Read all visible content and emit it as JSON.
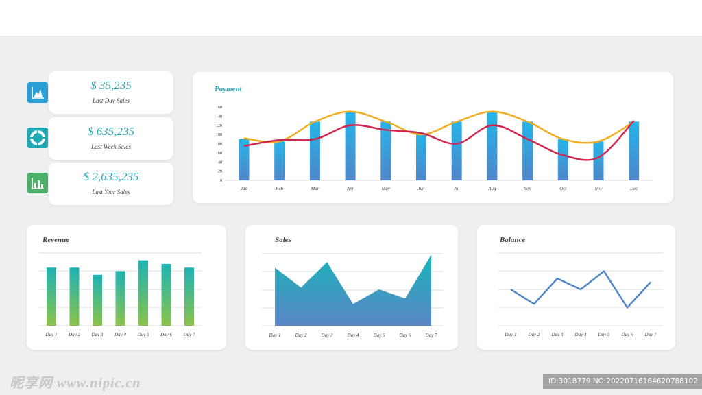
{
  "stats": [
    {
      "value": "$ 35,235",
      "label": "Last Day Sales",
      "icon": "area-chart-icon",
      "color": "#2a9fd6"
    },
    {
      "value": "$ 635,235",
      "label": "Last Week Sales",
      "icon": "pie-chart-icon",
      "color": "#1fa9b3"
    },
    {
      "value": "$ 2,635,235",
      "label": "Last Year Sales",
      "icon": "bar-chart-icon",
      "color": "#4caf6a"
    }
  ],
  "chart_data": [
    {
      "type": "bar",
      "title": "Payment",
      "categories": [
        "Jan",
        "Feb",
        "Mar",
        "Apr",
        "May",
        "Jun",
        "Jul",
        "Aug",
        "Sep",
        "Oct",
        "Nov",
        "Dec"
      ],
      "ylim": [
        0,
        160
      ],
      "yticks": [
        0,
        20,
        40,
        60,
        80,
        100,
        120,
        140,
        160
      ],
      "series": [
        {
          "type": "bar",
          "values": [
            90,
            85,
            128,
            148,
            128,
            100,
            128,
            148,
            128,
            90,
            85,
            128
          ],
          "color": "#2a9fd6"
        },
        {
          "type": "line",
          "values": [
            92,
            85,
            128,
            150,
            128,
            100,
            128,
            150,
            128,
            90,
            85,
            128
          ],
          "color": "#f0ad22"
        },
        {
          "type": "line",
          "values": [
            75,
            88,
            90,
            120,
            110,
            103,
            80,
            120,
            90,
            55,
            50,
            130
          ],
          "color": "#d0284f"
        }
      ]
    },
    {
      "type": "bar",
      "title": "Revenue",
      "categories": [
        "Day 1",
        "Day 2",
        "Day 3",
        "Day 4",
        "Day 5",
        "Day 6",
        "Day 7"
      ],
      "ylim": [
        0,
        4
      ],
      "values": [
        3.2,
        3.2,
        2.8,
        3.0,
        3.6,
        3.4,
        3.2
      ]
    },
    {
      "type": "area",
      "title": "Sales",
      "categories": [
        "Day 1",
        "Day 2",
        "Day 3",
        "Day 4",
        "Day 5",
        "Day 6",
        "Day 7"
      ],
      "ylim": [
        0,
        4
      ],
      "values": [
        3.2,
        2.1,
        3.5,
        1.2,
        2.0,
        1.5,
        3.9
      ]
    },
    {
      "type": "line",
      "title": "Balance",
      "categories": [
        "Day 1",
        "Day 2",
        "Day 3",
        "Day 4",
        "Day 5",
        "Day 6",
        "Day 7"
      ],
      "ylim": [
        0,
        4
      ],
      "values": [
        2.0,
        1.2,
        2.6,
        2.0,
        3.0,
        1.0,
        2.4
      ]
    }
  ],
  "watermark": {
    "left": "昵享网 www.nipic.cn",
    "right": "ID:3018779 NO:20220716164620788102"
  }
}
